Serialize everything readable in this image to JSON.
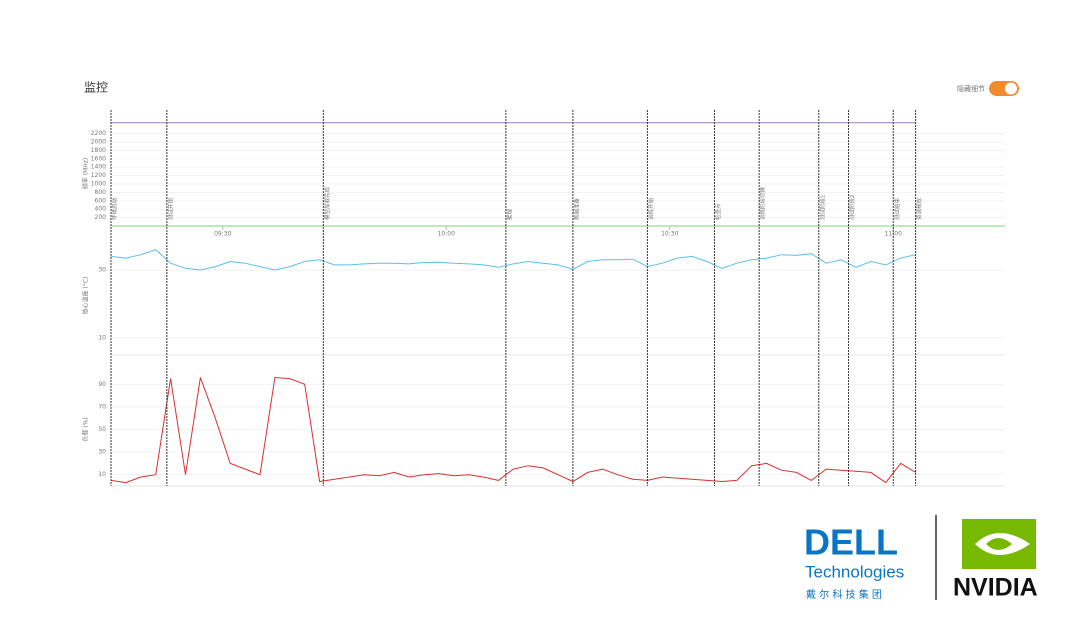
{
  "header": {
    "title": "监控",
    "toggle_label": "隐藏细节"
  },
  "time_axis": {
    "xlim": [
      555,
      675
    ],
    "xticks": [
      {
        "value": 570,
        "label": "09:30"
      },
      {
        "value": 600,
        "label": "10:00"
      },
      {
        "value": 630,
        "label": "10:30"
      },
      {
        "value": 660,
        "label": "11:00"
      }
    ],
    "x": [
      555,
      557,
      559,
      561,
      563,
      565,
      567,
      569,
      571,
      573,
      575,
      577,
      579,
      581,
      583,
      585,
      587,
      589,
      591,
      593,
      595,
      597,
      599,
      601,
      603,
      605,
      607,
      609,
      611,
      613,
      615,
      617,
      619,
      621,
      623,
      625,
      627,
      629,
      631,
      633,
      635,
      637,
      639,
      641,
      643,
      645,
      647,
      649,
      651,
      653,
      655,
      657,
      659,
      661,
      663
    ]
  },
  "events": [
    {
      "x": 555,
      "label": "环境启动"
    },
    {
      "x": 562.5,
      "label": "测试开始"
    },
    {
      "x": 583.5,
      "label": "模型加载完成"
    },
    {
      "x": 608,
      "label": "推理"
    },
    {
      "x": 617,
      "label": "数据准备"
    },
    {
      "x": 627,
      "label": "训练开始"
    },
    {
      "x": 636,
      "label": "检查点"
    },
    {
      "x": 642,
      "label": "训练阶段切换"
    },
    {
      "x": 650,
      "label": "测试阶段1"
    },
    {
      "x": 654,
      "label": "测试阶段2"
    },
    {
      "x": 660,
      "label": "测试结束"
    },
    {
      "x": 663,
      "label": "资源释放"
    }
  ],
  "chart_data": [
    {
      "type": "line",
      "ylabel": "频率 (MHz)",
      "ylim": [
        0,
        2500
      ],
      "yticks": [
        200,
        400,
        600,
        800,
        1000,
        1200,
        1400,
        1600,
        1800,
        2000,
        2200
      ],
      "series": [
        {
          "color": "#9b7fc9",
          "x": [
            555,
            663
          ],
          "values": [
            2460,
            2460
          ]
        },
        {
          "color": "#7fd17f",
          "x": [
            555,
            675
          ],
          "values": [
            0,
            0
          ]
        }
      ]
    },
    {
      "type": "line",
      "ylabel": "核心温度 (°C)",
      "ylim": [
        5,
        40
      ],
      "yticks": [
        10,
        30
      ],
      "series": [
        {
          "color": "#5bc0ea",
          "values": [
            34,
            33.5,
            34.5,
            36,
            32,
            30.5,
            30,
            31,
            32.5,
            32,
            31,
            30,
            31,
            32.5,
            33,
            31.5,
            31.5,
            31.8,
            32,
            32,
            31.8,
            32.2,
            32.3,
            32,
            31.8,
            31.5,
            30.8,
            31.8,
            32.5,
            32,
            31.5,
            30.2,
            32.5,
            33,
            33,
            33.2,
            31,
            32,
            33.5,
            34,
            32.5,
            30.5,
            32,
            33,
            33.5,
            34.5,
            34.3,
            34.8,
            32,
            33,
            30.8,
            32.5,
            31.5,
            33.5,
            34.5
          ]
        }
      ]
    },
    {
      "type": "line",
      "ylabel": "负载 (%)",
      "ylim": [
        0,
        100
      ],
      "yticks": [
        10,
        30,
        50,
        70,
        90
      ],
      "series": [
        {
          "color": "#d93030",
          "values": [
            5,
            3,
            8,
            10,
            95,
            10,
            96,
            60,
            20,
            15,
            10,
            96,
            95,
            90,
            4,
            6,
            8,
            10,
            9,
            12,
            8,
            10,
            11,
            9,
            10,
            8,
            5,
            15,
            18,
            16,
            10,
            4,
            12,
            15,
            10,
            6,
            5,
            8,
            7,
            6,
            5,
            4,
            5,
            18,
            20,
            14,
            12,
            5,
            15,
            14,
            13,
            12,
            3,
            20,
            12
          ]
        }
      ]
    }
  ],
  "logos": {
    "dell": "DELL",
    "dell_sub": "Technologies",
    "dell_cn": "戴 尔 科 技 集 团",
    "nvidia": "NVIDIA"
  }
}
